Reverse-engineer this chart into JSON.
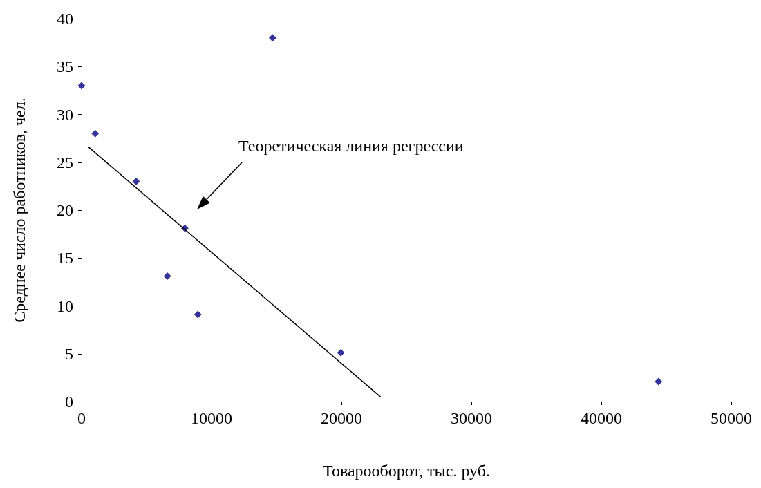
{
  "chart_data": {
    "type": "scatter",
    "xlabel": "Товарооборот, тыс. руб.",
    "ylabel": "Среднее число работников, чел.",
    "xlim": [
      0,
      50000
    ],
    "xticks": [
      0,
      10000,
      20000,
      30000,
      40000,
      50000
    ],
    "ylim": [
      0,
      40
    ],
    "yticks": [
      0,
      5,
      10,
      15,
      20,
      25,
      30,
      35,
      40
    ],
    "grid": false,
    "marker": "diamond",
    "series": [
      {
        "color": "#000080",
        "x": [
          0,
          14700,
          1050,
          4200,
          7950,
          6600,
          8950,
          19950,
          44400
        ],
        "values": [
          33,
          38,
          28,
          23,
          18.1,
          13.1,
          9.1,
          5.1,
          2.1
        ]
      },
      {
        "type": "line",
        "color": "#000000",
        "marker": "none",
        "line_style": "solid",
        "x": [
          530,
          23000
        ],
        "values": [
          26.6,
          0.5
        ]
      }
    ],
    "annotations": [
      "Теоретическая линия регрессии"
    ]
  }
}
